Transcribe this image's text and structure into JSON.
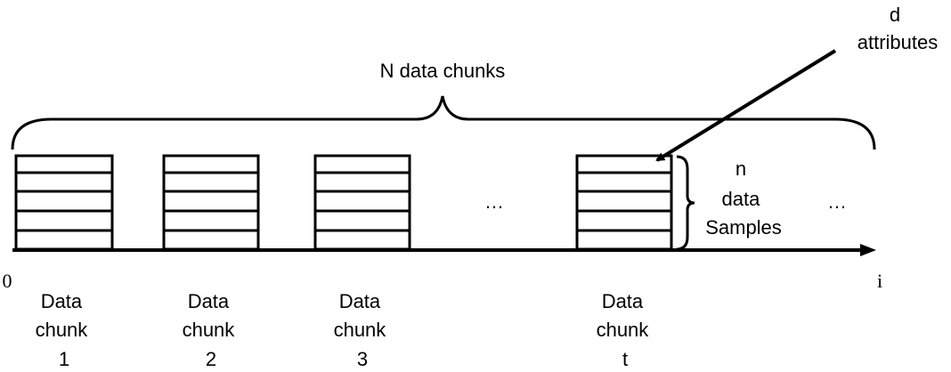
{
  "top_label": "N data chunks",
  "attributes_label": [
    "d",
    "attributes"
  ],
  "samples_label": [
    "n",
    "data",
    "Samples"
  ],
  "ellipsis": "…",
  "axis": {
    "origin": "0",
    "end": "i"
  },
  "chunks": [
    {
      "lines": [
        "Data",
        "chunk",
        "1"
      ]
    },
    {
      "lines": [
        "Data",
        "chunk",
        "2"
      ]
    },
    {
      "lines": [
        "Data",
        "chunk",
        "3"
      ]
    },
    {
      "lines": [
        "Data",
        "chunk",
        "t"
      ]
    }
  ]
}
